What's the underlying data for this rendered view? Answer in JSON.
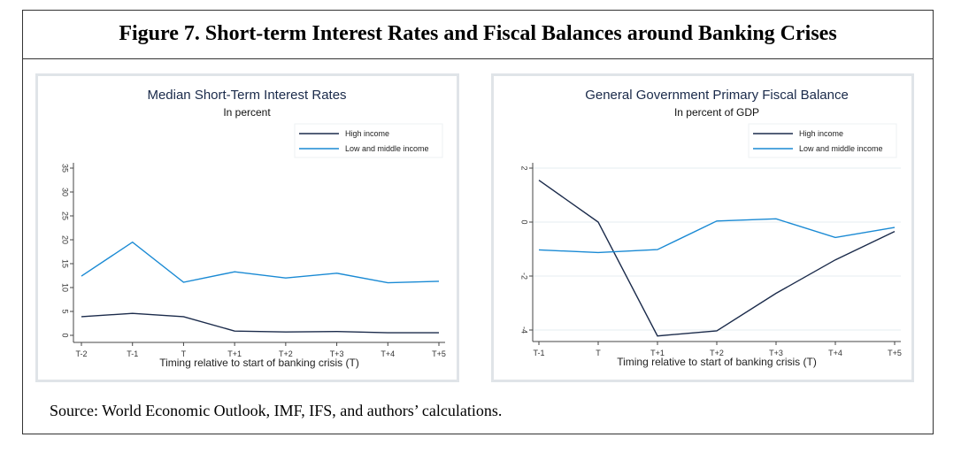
{
  "figure_title": "Figure 7. Short-term Interest Rates and Fiscal Balances around Banking Crises",
  "source": "Source: World Economic Outlook, IMF, IFS, and authors’ calculations.",
  "colors": {
    "high_income": "#1b2b4b",
    "low_middle_income": "#1a8ad4",
    "panel_border": "#e0e4e8"
  },
  "chart_data": [
    {
      "type": "line",
      "title": "Median Short-Term Interest Rates",
      "subtitle": "In percent",
      "xlabel": "Timing relative to start of banking crisis (T)",
      "ylabel": "",
      "categories": [
        "T-2",
        "T-1",
        "T",
        "T+1",
        "T+2",
        "T+3",
        "T+4",
        "T+5"
      ],
      "yticks": [
        0,
        5,
        10,
        15,
        20,
        25,
        30,
        35
      ],
      "ylim": [
        0,
        35
      ],
      "grid": false,
      "legend_placement": "top-right",
      "series": [
        {
          "name": "High income",
          "color": "#1b2b4b",
          "values": [
            3.9,
            4.6,
            3.9,
            0.9,
            0.7,
            0.8,
            0.55,
            0.55
          ]
        },
        {
          "name": "Low and middle income",
          "color": "#1a8ad4",
          "values": [
            12.4,
            19.5,
            11.1,
            13.3,
            12.0,
            13.0,
            11.0,
            11.3
          ]
        }
      ]
    },
    {
      "type": "line",
      "title": "General Government Primary Fiscal Balance",
      "subtitle": "In percent of GDP",
      "xlabel": "Timing relative to start of banking crisis (T)",
      "ylabel": "",
      "categories": [
        "T-1",
        "T",
        "T+1",
        "T+2",
        "T+3",
        "T+4",
        "T+5"
      ],
      "yticks": [
        -4,
        -2,
        0,
        2
      ],
      "ylim": [
        -4,
        2
      ],
      "grid": true,
      "legend_placement": "top-right",
      "series": [
        {
          "name": "High income",
          "color": "#1b2b4b",
          "values": [
            1.55,
            0.0,
            -4.22,
            -4.03,
            -2.64,
            -1.4,
            -0.35
          ]
        },
        {
          "name": "Low and middle income",
          "color": "#1a8ad4",
          "values": [
            -1.03,
            -1.13,
            -1.02,
            0.04,
            0.12,
            -0.57,
            -0.2
          ]
        }
      ]
    }
  ]
}
